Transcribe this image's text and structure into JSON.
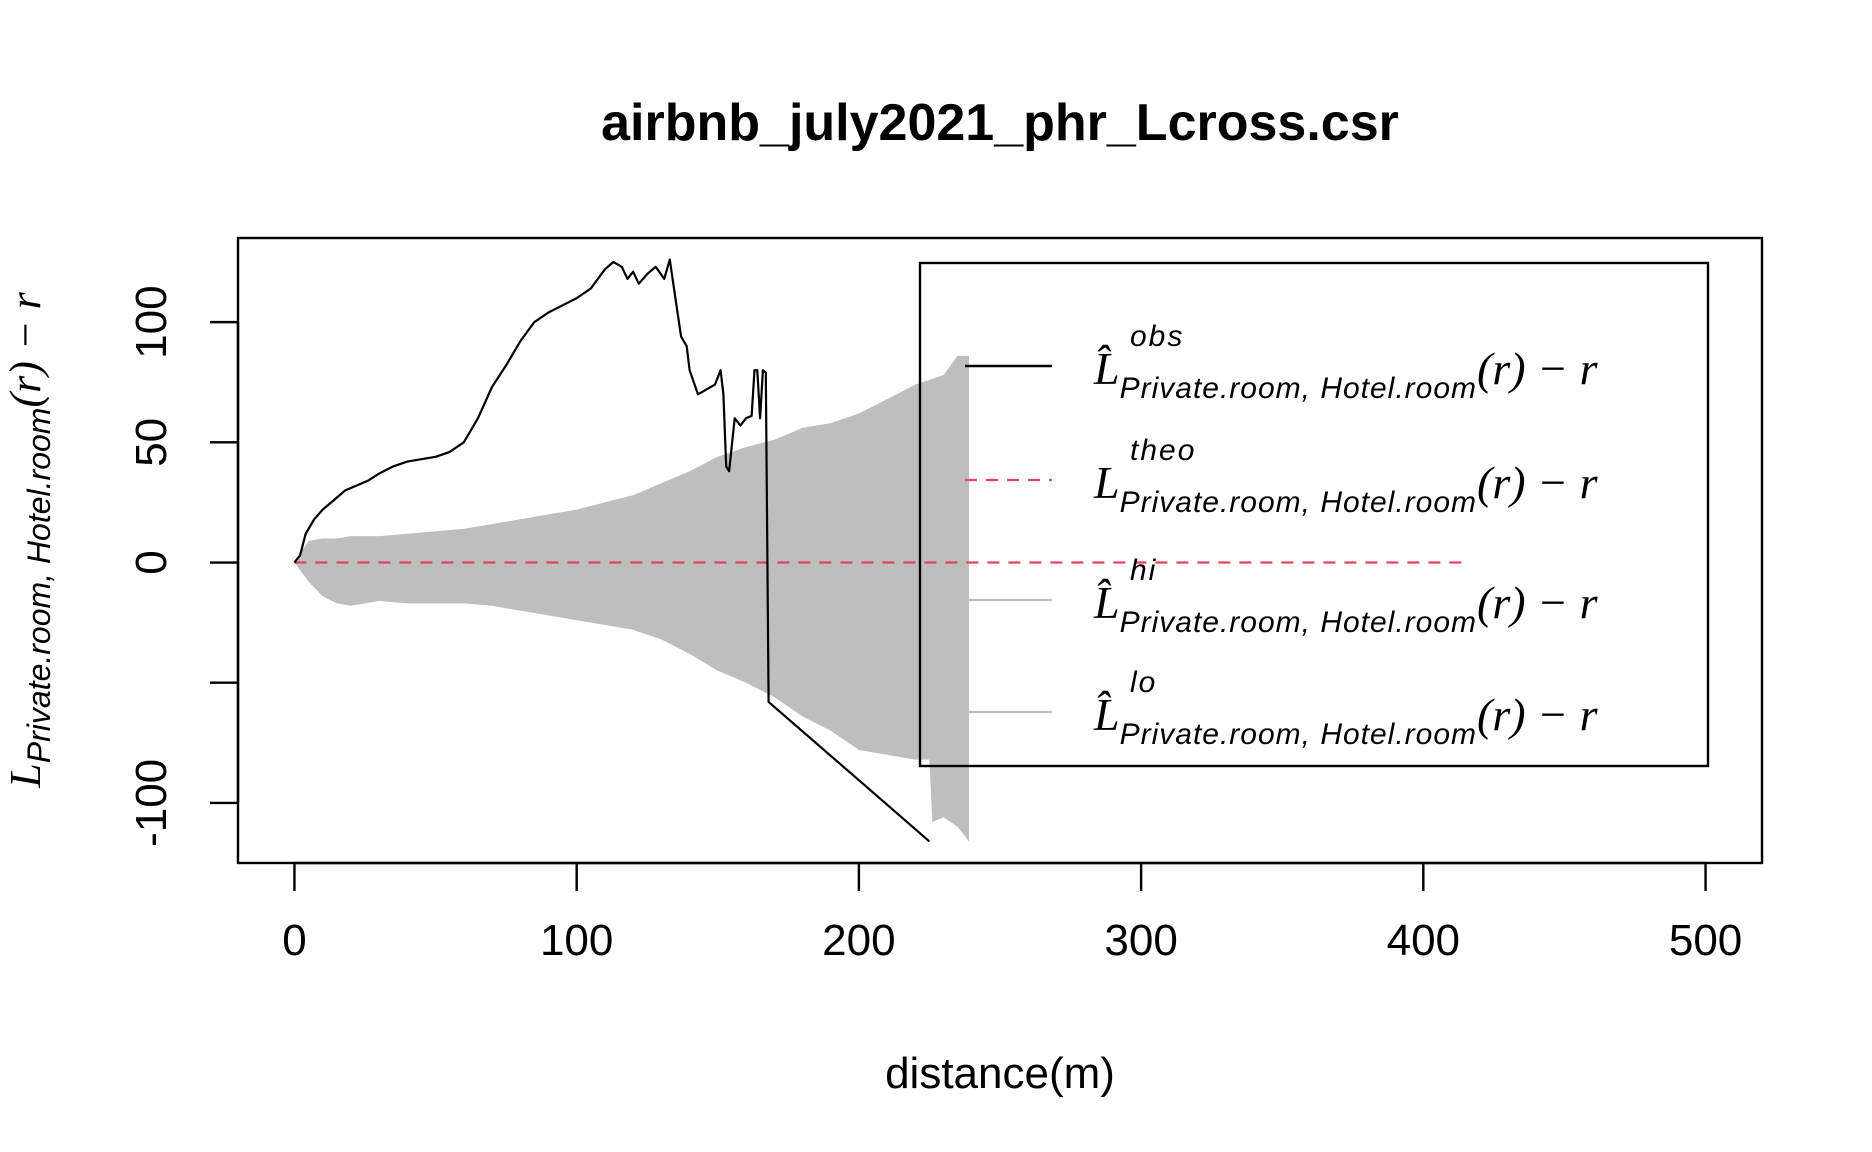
{
  "chart_data": {
    "type": "line",
    "title": "airbnb_july2021_phr_Lcross.csr",
    "xlabel": "distance(m)",
    "ylabel": {
      "main": "L",
      "sub": "Private.room, Hotel.room",
      "tail": "(r) − r"
    },
    "xlim": [
      -20,
      520
    ],
    "ylim": [
      -125,
      135
    ],
    "x_ticks": [
      0,
      100,
      200,
      300,
      400,
      500
    ],
    "y_ticks": [
      -100,
      -50,
      0,
      50,
      100
    ],
    "y_tick_labels": [
      "-100",
      "",
      "0",
      "50",
      "100"
    ],
    "grid": false,
    "legend_position": "top-right",
    "series": [
      {
        "key": "obs",
        "color": "#000000",
        "style": "solid",
        "legend_main": "L̂",
        "legend_sup": "obs",
        "legend_sub": "Private.room, Hotel.room",
        "legend_tail": "(r) − r",
        "x": [
          0,
          2,
          4,
          7,
          10,
          14,
          18,
          22,
          26,
          30,
          35,
          40,
          45,
          50,
          55,
          60,
          65,
          70,
          75,
          80,
          85,
          90,
          95,
          100,
          105,
          110,
          113,
          116,
          118,
          120,
          122,
          125,
          128,
          131,
          133,
          135,
          137,
          139,
          140,
          143,
          146,
          149,
          151,
          152,
          153,
          154,
          156,
          158,
          160,
          162,
          163,
          164,
          165,
          166,
          167,
          168,
          225
        ],
        "y": [
          0,
          3,
          12,
          18,
          22,
          26,
          30,
          32,
          34,
          37,
          40,
          42,
          43,
          44,
          46,
          50,
          60,
          73,
          82,
          92,
          100,
          104,
          107,
          110,
          114,
          122,
          125,
          123,
          118,
          121,
          116,
          120,
          123,
          118,
          126,
          110,
          94,
          90,
          80,
          70,
          72,
          74,
          80,
          70,
          40,
          38,
          60,
          57,
          60,
          61,
          80,
          80,
          60,
          80,
          79,
          -58,
          -116
        ]
      },
      {
        "key": "theo",
        "color": "#e0455e",
        "style": "dashed",
        "legend_main": "L",
        "legend_sup": "theo",
        "legend_sub": "Private.room, Hotel.room",
        "legend_tail": "(r) − r",
        "x": [
          0,
          415
        ],
        "y": [
          0,
          0
        ]
      },
      {
        "key": "hi",
        "color": "#bebebe",
        "style": "solid",
        "legend_main": "L̂",
        "legend_sup": "hi",
        "legend_sub": "Private.room, Hotel.room",
        "legend_tail": "(r) − r",
        "x": [
          0,
          5,
          10,
          15,
          20,
          30,
          40,
          50,
          60,
          70,
          80,
          90,
          100,
          110,
          120,
          130,
          140,
          150,
          160,
          170,
          180,
          190,
          200,
          210,
          220,
          230,
          235,
          239
        ],
        "y": [
          0,
          9,
          10,
          10,
          11,
          11,
          12,
          13,
          14,
          16,
          18,
          20,
          22,
          25,
          28,
          33,
          38,
          44,
          48,
          51,
          56,
          58,
          62,
          68,
          74,
          78,
          86,
          86
        ]
      },
      {
        "key": "lo",
        "color": "#bebebe",
        "style": "solid",
        "legend_main": "L̂",
        "legend_sup": "lo",
        "legend_sub": "Private.room, Hotel.room",
        "legend_tail": "(r) − r",
        "x": [
          0,
          5,
          10,
          15,
          20,
          30,
          40,
          50,
          60,
          70,
          80,
          90,
          100,
          110,
          120,
          130,
          140,
          150,
          160,
          170,
          180,
          190,
          200,
          210,
          220,
          225,
          226,
          230,
          235,
          239
        ],
        "y": [
          0,
          -8,
          -14,
          -17,
          -18,
          -16,
          -17,
          -17,
          -17,
          -18,
          -20,
          -22,
          -24,
          -26,
          -28,
          -32,
          -38,
          -45,
          -50,
          -56,
          -64,
          -70,
          -78,
          -80,
          -82,
          -82,
          -108,
          -106,
          -110,
          -116
        ]
      }
    ]
  }
}
